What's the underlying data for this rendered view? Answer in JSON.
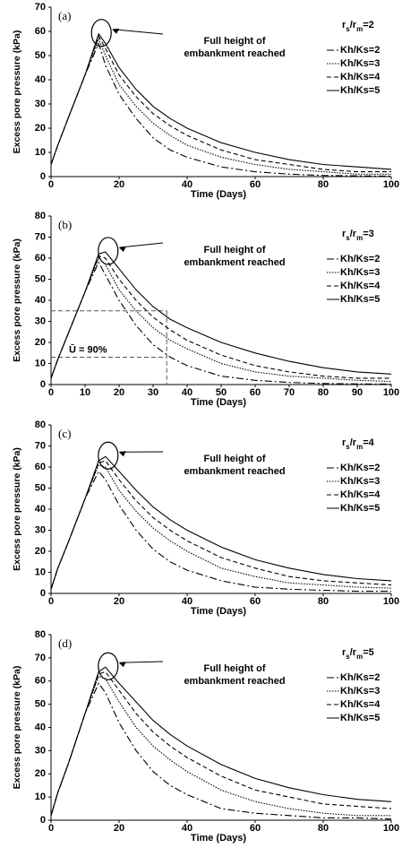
{
  "chart_data": [
    {
      "type": "line",
      "panel_label": "(a)",
      "ratio_label": [
        "r",
        "s",
        "/r",
        "m",
        "=2"
      ],
      "annotation": [
        "Full height of",
        "embankment reached"
      ],
      "xlabel": "Time (Days)",
      "ylabel": "Excess pore pressure (kPa)",
      "x": [
        0,
        2,
        5,
        10,
        14,
        16,
        20,
        25,
        30,
        35,
        40,
        50,
        60,
        70,
        80,
        90,
        100
      ],
      "xlim": [
        0,
        100
      ],
      "xticks": [
        0,
        20,
        40,
        60,
        80,
        100
      ],
      "ylim": [
        0,
        70
      ],
      "yticks": [
        0,
        10,
        20,
        30,
        40,
        50,
        60,
        70
      ],
      "legend": "right",
      "series": [
        {
          "name": "Kh/Ks=2",
          "color": "#000000",
          "dash": "8,3,2,3",
          "values": [
            5,
            13,
            24,
            42,
            55,
            46,
            34,
            24,
            16,
            11,
            8,
            4,
            2,
            1,
            0.5,
            0.3,
            0.2
          ]
        },
        {
          "name": "Kh/Ks=3",
          "color": "#000000",
          "dash": "1.5,1.5",
          "values": [
            5,
            13,
            24,
            42,
            57,
            50,
            38,
            29,
            22,
            17,
            13,
            8,
            5,
            3,
            2,
            1,
            1
          ]
        },
        {
          "name": "Kh/Ks=4",
          "color": "#000000",
          "dash": "5,3",
          "values": [
            5,
            13,
            24,
            42,
            58,
            53,
            42,
            33,
            26,
            21,
            17,
            11,
            7,
            5,
            3,
            2,
            2
          ]
        },
        {
          "name": "Kh/Ks=5",
          "color": "#000000",
          "dash": "none",
          "values": [
            5,
            13,
            24,
            42,
            59,
            55,
            45,
            36,
            29,
            24,
            20,
            14,
            10,
            7,
            5,
            4,
            3
          ]
        }
      ]
    },
    {
      "type": "line",
      "panel_label": "(b)",
      "ratio_label": [
        "r",
        "s",
        "/r",
        "m",
        "=3"
      ],
      "annotation": [
        "Full height of",
        "embankment reached"
      ],
      "guide_text": "Ū = 90%",
      "guides": {
        "x": 34,
        "y_upper": 35,
        "y_lower": 13
      },
      "xlabel": "Time (Days)",
      "ylabel": "Excess pore pressure (kPa)",
      "x": [
        0,
        2,
        5,
        10,
        14,
        16,
        20,
        25,
        30,
        35,
        40,
        50,
        60,
        70,
        80,
        90,
        100
      ],
      "xlim": [
        0,
        100
      ],
      "xticks": [
        0,
        10,
        20,
        30,
        40,
        50,
        60,
        70,
        80,
        90,
        100
      ],
      "ylim": [
        0,
        80
      ],
      "yticks": [
        0,
        10,
        20,
        30,
        40,
        50,
        60,
        70,
        80
      ],
      "legend": "right",
      "series": [
        {
          "name": "Kh/Ks=2",
          "color": "#000000",
          "dash": "8,3,2,3",
          "values": [
            3,
            12,
            24,
            44,
            58,
            52,
            40,
            28,
            19,
            13,
            9,
            4,
            2,
            1,
            0.5,
            0.3,
            0.2
          ]
        },
        {
          "name": "Kh/Ks=3",
          "color": "#000000",
          "dash": "1.5,1.5",
          "values": [
            3,
            12,
            24,
            44,
            60,
            57,
            45,
            35,
            27,
            21,
            17,
            10,
            6,
            4,
            3,
            2,
            1.5
          ]
        },
        {
          "name": "Kh/Ks=4",
          "color": "#000000",
          "dash": "5,3",
          "values": [
            3,
            12,
            24,
            44,
            61,
            60,
            50,
            40,
            32,
            26,
            21,
            14,
            9,
            6,
            4,
            3,
            3
          ]
        },
        {
          "name": "Kh/Ks=5",
          "color": "#000000",
          "dash": "none",
          "values": [
            3,
            12,
            24,
            44,
            62,
            63,
            55,
            45,
            37,
            31,
            27,
            20,
            15,
            11,
            8,
            6,
            5
          ]
        }
      ]
    },
    {
      "type": "line",
      "panel_label": "(c)",
      "ratio_label": [
        "r",
        "s",
        "/r",
        "m",
        "=4"
      ],
      "annotation": [
        "Full height of",
        "embankment reached"
      ],
      "xlabel": "Time (Days)",
      "ylabel": "Excess pore pressure (kPa)",
      "x": [
        0,
        2,
        5,
        10,
        14,
        16,
        20,
        25,
        30,
        35,
        40,
        50,
        60,
        70,
        80,
        90,
        100
      ],
      "xlim": [
        0,
        100
      ],
      "xticks": [
        0,
        20,
        40,
        60,
        80,
        100
      ],
      "ylim": [
        0,
        80
      ],
      "yticks": [
        0,
        10,
        20,
        30,
        40,
        50,
        60,
        70,
        80
      ],
      "legend": "right",
      "series": [
        {
          "name": "Kh/Ks=2",
          "color": "#000000",
          "dash": "8,3,2,3",
          "values": [
            2,
            12,
            24,
            45,
            58,
            54,
            42,
            30,
            21,
            15,
            11,
            6,
            3,
            2,
            1.5,
            1,
            1
          ]
        },
        {
          "name": "Kh/Ks=3",
          "color": "#000000",
          "dash": "1.5,1.5",
          "values": [
            2,
            12,
            24,
            45,
            61,
            60,
            49,
            39,
            31,
            25,
            20,
            12,
            8,
            5,
            4,
            3,
            2.5
          ]
        },
        {
          "name": "Kh/Ks=4",
          "color": "#000000",
          "dash": "5,3",
          "values": [
            2,
            12,
            24,
            45,
            62,
            63,
            54,
            44,
            36,
            30,
            25,
            17,
            12,
            8,
            6,
            5,
            4
          ]
        },
        {
          "name": "Kh/Ks=5",
          "color": "#000000",
          "dash": "none",
          "values": [
            2,
            12,
            24,
            45,
            63,
            65,
            58,
            49,
            41,
            35,
            30,
            22,
            16,
            12,
            9,
            7,
            6
          ]
        }
      ]
    },
    {
      "type": "line",
      "panel_label": "(d)",
      "ratio_label": [
        "r",
        "s",
        "/r",
        "m",
        "=5"
      ],
      "annotation": [
        "Full height of",
        "embankment reached"
      ],
      "xlabel": "Time (Days)",
      "ylabel": "Excess pore pressure (kPa)",
      "x": [
        0,
        2,
        5,
        10,
        14,
        16,
        20,
        25,
        30,
        35,
        40,
        50,
        60,
        70,
        80,
        90,
        100
      ],
      "xlim": [
        0,
        100
      ],
      "xticks": [
        0,
        20,
        40,
        60,
        80,
        100
      ],
      "ylim": [
        0,
        80
      ],
      "yticks": [
        0,
        10,
        20,
        30,
        40,
        50,
        60,
        70,
        80
      ],
      "legend": "right",
      "series": [
        {
          "name": "Kh/Ks=2",
          "color": "#000000",
          "dash": "8,3,2,3",
          "values": [
            2,
            12,
            24,
            46,
            59,
            55,
            42,
            30,
            21,
            15,
            11,
            5,
            3,
            2,
            1,
            1,
            0.5
          ]
        },
        {
          "name": "Kh/Ks=3",
          "color": "#000000",
          "dash": "1.5,1.5",
          "values": [
            2,
            12,
            24,
            46,
            62,
            61,
            51,
            40,
            32,
            26,
            21,
            13,
            8,
            5,
            3,
            2,
            2
          ]
        },
        {
          "name": "Kh/Ks=4",
          "color": "#000000",
          "dash": "5,3",
          "values": [
            2,
            12,
            24,
            46,
            63,
            64,
            56,
            46,
            38,
            32,
            27,
            19,
            13,
            10,
            7,
            6,
            5
          ]
        },
        {
          "name": "Kh/Ks=5",
          "color": "#000000",
          "dash": "none",
          "values": [
            2,
            12,
            24,
            46,
            64,
            66,
            59,
            51,
            43,
            37,
            32,
            24,
            18,
            14,
            11,
            9,
            8
          ]
        }
      ]
    }
  ]
}
